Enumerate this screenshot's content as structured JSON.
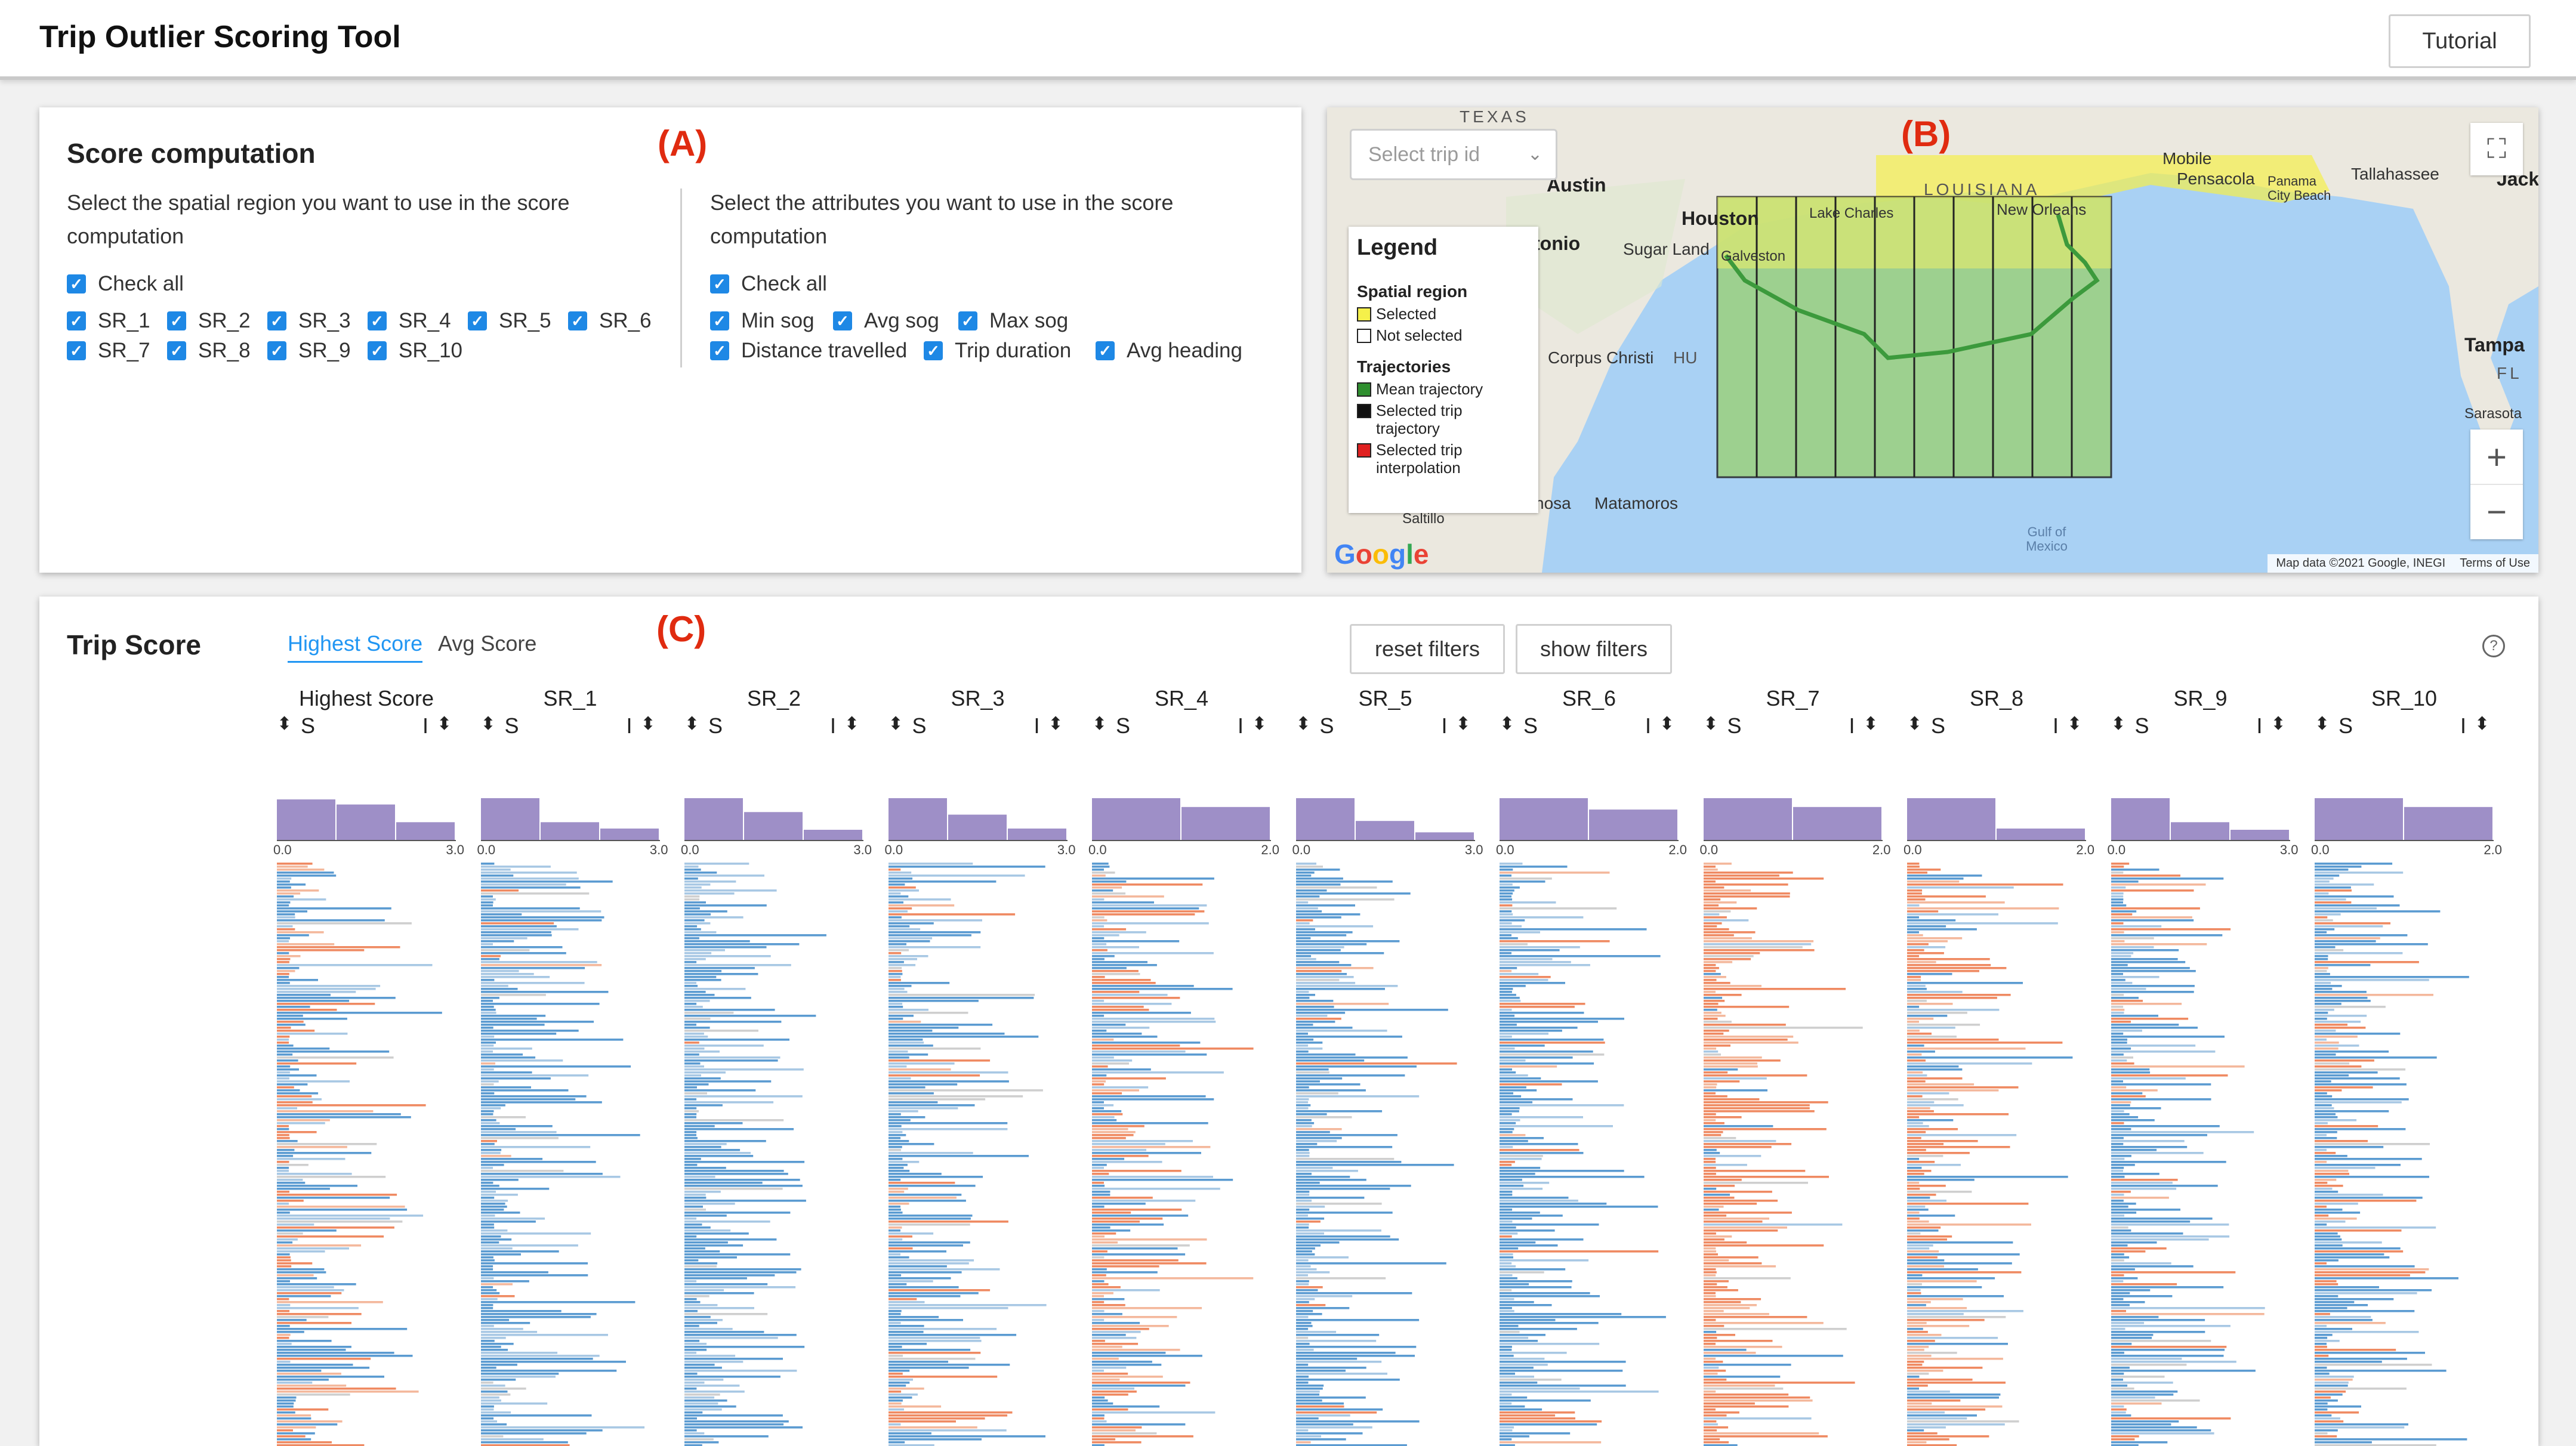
{
  "header": {
    "title": "Trip Outlier Scoring Tool",
    "tutorial_label": "Tutorial"
  },
  "callouts": {
    "a": "(A)",
    "b": "(B)",
    "c": "(C)"
  },
  "score_computation": {
    "title": "Score computation",
    "spatial_desc": "Select the spatial region you want to use in the score computation",
    "attr_desc": "Select the attributes you want to use in the score computation",
    "check_all": "Check all",
    "regions": [
      "SR_1",
      "SR_2",
      "SR_3",
      "SR_4",
      "SR_5",
      "SR_6",
      "SR_7",
      "SR_8",
      "SR_9",
      "SR_10"
    ],
    "attributes": [
      "Min sog",
      "Avg sog",
      "Max sog",
      "Distance travelled",
      "Trip duration",
      "Avg heading"
    ],
    "checkbox_color": "#1e88e5"
  },
  "map": {
    "search_placeholder": "Select trip id",
    "labels": {
      "texas": "TEXAS",
      "louisiana": "LOUISIANA",
      "austin": "Austin",
      "houston": "Houston",
      "antonio": "tonio",
      "sugar_land": "Sugar Land",
      "galveston": "Galveston",
      "lake_charles": "Lake Charles",
      "new_orleans": "New Orleans",
      "corpus_christi": "Corpus Christi",
      "mobile": "Mobile",
      "pensacola": "Pensacola",
      "panama_city": "Panama City Beach",
      "tallahassee": "Tallahassee",
      "jack": "Jack",
      "tampa": "Tampa",
      "fl": "FL",
      "sarasota": "Sarasota",
      "matamoros": "Matamoros",
      "reynosa": "nosa",
      "saltillo": "Saltillo",
      "gulf": "Gulf of Mexico",
      "hu": "HU"
    },
    "legend": {
      "title": "Legend",
      "spatial_title": "Spatial region",
      "selected": "Selected",
      "not_selected": "Not selected",
      "traj_title": "Trajectories",
      "mean": "Mean trajectory",
      "sel_traj": "Selected trip trajectory",
      "sel_interp": "Selected trip interpolation"
    },
    "colors": {
      "selected": "#f5f04a",
      "mean": "#2f8f2f",
      "sel_traj": "#111111",
      "sel_interp": "#e02020",
      "water": "#a9d1f4",
      "land": "#ebe8df",
      "grid_fill": "#9bd07e"
    },
    "footer": {
      "google": "Google",
      "data": "Map data ©2021 Google, INEGI",
      "terms": "Terms of Use"
    }
  },
  "trip_score": {
    "title": "Trip Score",
    "tab_highest": "Highest Score",
    "tab_avg": "Avg Score",
    "reset_label": "reset filters",
    "show_label": "show filters",
    "help": "?",
    "columns": [
      {
        "name": "Highest Score",
        "max": "3.0",
        "hist": [
          3.2,
          2.8,
          1.4
        ],
        "bias": 0.3
      },
      {
        "name": "SR_1",
        "max": "3.0",
        "hist": [
          3.3,
          1.4,
          0.9
        ],
        "bias": 0.02
      },
      {
        "name": "SR_2",
        "max": "3.0",
        "hist": [
          3.3,
          2.2,
          0.8
        ],
        "bias": 0.01
      },
      {
        "name": "SR_3",
        "max": "3.0",
        "hist": [
          3.3,
          2.0,
          0.9
        ],
        "bias": 0.15
      },
      {
        "name": "SR_4",
        "max": "2.0",
        "hist": [
          3.3,
          2.6
        ],
        "bias": 0.35
      },
      {
        "name": "SR_5",
        "max": "3.0",
        "hist": [
          3.3,
          1.5,
          0.6
        ],
        "bias": 0.05
      },
      {
        "name": "SR_6",
        "max": "2.0",
        "hist": [
          3.3,
          2.4
        ],
        "bias": 0.12
      },
      {
        "name": "SR_7",
        "max": "2.0",
        "hist": [
          3.3,
          2.6
        ],
        "bias": 0.8
      },
      {
        "name": "SR_8",
        "max": "2.0",
        "hist": [
          3.3,
          0.9
        ],
        "bias": 0.6
      },
      {
        "name": "SR_9",
        "max": "3.0",
        "hist": [
          3.3,
          1.4,
          0.8
        ],
        "bias": 0.2
      },
      {
        "name": "SR_10",
        "max": "2.0",
        "hist": [
          3.3,
          2.6
        ],
        "bias": 0.25
      }
    ],
    "axis_min": "0.0",
    "sort_s": "S",
    "sort_i": "I",
    "hist_color": "#9e8fc7",
    "bar_colors": {
      "blue": "#5b9bd1",
      "light_blue": "#a8c8e4",
      "orange": "#ef8a62",
      "light_orange": "#f4b89c",
      "gray": "#cfcfcf"
    }
  }
}
